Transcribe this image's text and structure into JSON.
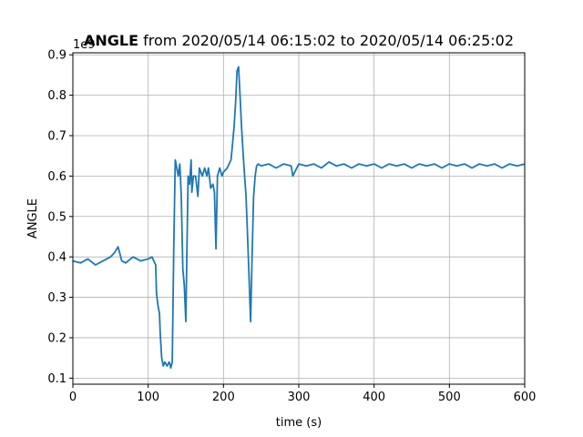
{
  "chart_data": {
    "type": "line",
    "title_bold": "ANGLE",
    "title_rest": " from 2020/05/14 06:15:02 to 2020/05/14 06:25:02",
    "xlabel": "time (s)",
    "ylabel": "ANGLE",
    "offset_text": "1e9",
    "xlim": [
      0,
      600
    ],
    "ylim": [
      0.085,
      0.905
    ],
    "xticks": [
      0,
      100,
      200,
      300,
      400,
      500,
      600
    ],
    "yticks": [
      0.1,
      0.2,
      0.3,
      0.4,
      0.5,
      0.6,
      0.7,
      0.8,
      0.9
    ],
    "xtick_labels": [
      "0",
      "100",
      "200",
      "300",
      "400",
      "500",
      "600"
    ],
    "ytick_labels": [
      "0.1",
      "0.2",
      "0.3",
      "0.4",
      "0.5",
      "0.6",
      "0.7",
      "0.8",
      "0.9"
    ],
    "grid": true,
    "line_color": "#1f77b4",
    "series": [
      {
        "x": [
          0,
          10,
          20,
          30,
          40,
          50,
          55,
          60,
          65,
          70,
          80,
          90,
          100,
          105,
          110,
          111,
          113,
          115,
          116,
          118,
          120,
          122,
          125,
          128,
          130,
          132,
          134,
          136,
          138,
          140,
          142,
          144,
          146,
          148,
          150,
          151,
          153,
          155,
          157,
          158,
          160,
          163,
          166,
          168,
          170,
          172,
          175,
          178,
          180,
          183,
          186,
          188,
          190,
          192,
          195,
          198,
          200,
          205,
          210,
          212,
          214,
          216,
          218,
          220,
          222,
          224,
          226,
          228,
          230,
          232,
          234,
          236,
          238,
          240,
          242,
          244,
          246,
          250,
          260,
          270,
          280,
          290,
          292,
          300,
          310,
          320,
          330,
          340,
          350,
          360,
          370,
          380,
          390,
          400,
          410,
          420,
          430,
          440,
          450,
          460,
          470,
          480,
          490,
          500,
          510,
          520,
          530,
          540,
          550,
          560,
          570,
          580,
          590,
          600
        ],
        "values": [
          0.39,
          0.385,
          0.395,
          0.38,
          0.39,
          0.4,
          0.41,
          0.425,
          0.39,
          0.385,
          0.4,
          0.39,
          0.395,
          0.4,
          0.38,
          0.31,
          0.28,
          0.26,
          0.21,
          0.15,
          0.13,
          0.14,
          0.13,
          0.14,
          0.125,
          0.14,
          0.43,
          0.64,
          0.62,
          0.6,
          0.63,
          0.55,
          0.37,
          0.33,
          0.24,
          0.36,
          0.6,
          0.58,
          0.64,
          0.56,
          0.6,
          0.6,
          0.55,
          0.62,
          0.61,
          0.6,
          0.62,
          0.6,
          0.62,
          0.57,
          0.58,
          0.56,
          0.42,
          0.6,
          0.62,
          0.6,
          0.61,
          0.62,
          0.64,
          0.68,
          0.72,
          0.78,
          0.86,
          0.87,
          0.8,
          0.72,
          0.66,
          0.6,
          0.55,
          0.45,
          0.35,
          0.24,
          0.4,
          0.55,
          0.6,
          0.625,
          0.63,
          0.625,
          0.63,
          0.62,
          0.63,
          0.625,
          0.6,
          0.63,
          0.625,
          0.63,
          0.62,
          0.635,
          0.625,
          0.63,
          0.62,
          0.63,
          0.625,
          0.63,
          0.62,
          0.63,
          0.625,
          0.63,
          0.62,
          0.63,
          0.625,
          0.63,
          0.62,
          0.63,
          0.625,
          0.63,
          0.62,
          0.63,
          0.625,
          0.63,
          0.62,
          0.63,
          0.625,
          0.63
        ]
      }
    ]
  }
}
